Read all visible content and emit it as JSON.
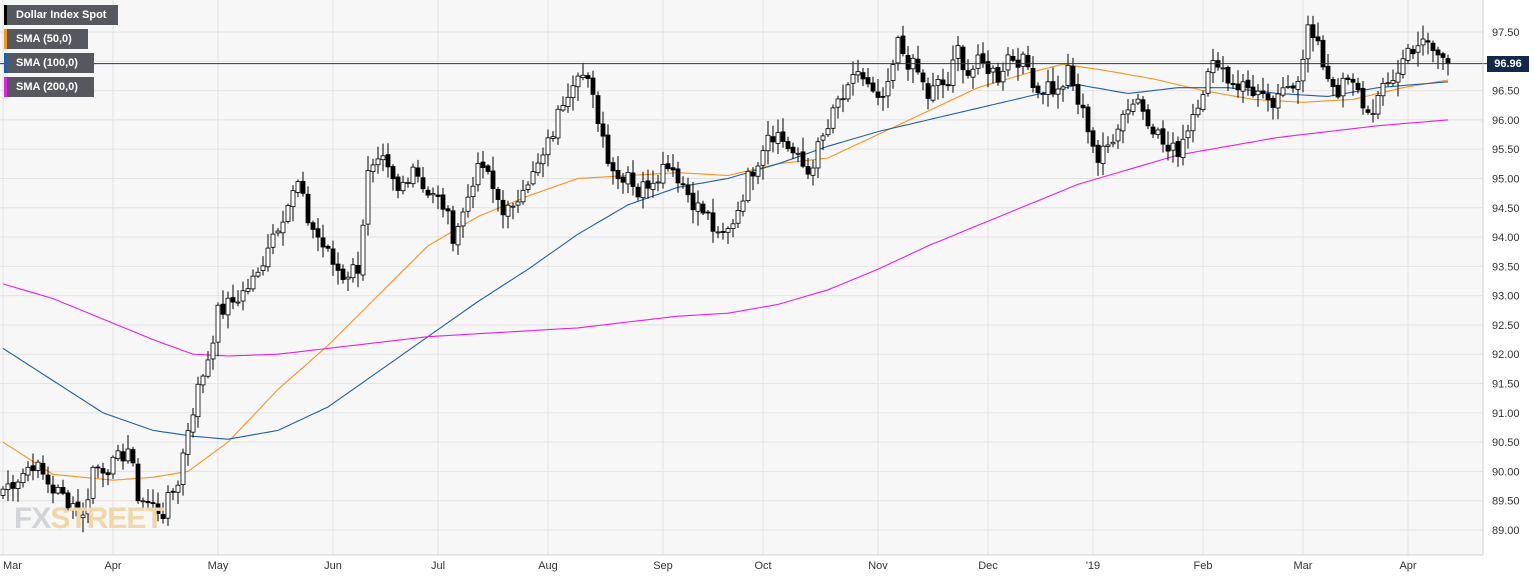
{
  "chart_data": {
    "type": "candlestick",
    "title": "",
    "instrument": "Dollar Index Spot",
    "last_price_label": "96.96",
    "last_price": 96.96,
    "y_axis": {
      "ticks": [
        "89.00",
        "89.50",
        "90.00",
        "90.50",
        "91.00",
        "91.50",
        "92.00",
        "92.50",
        "93.00",
        "93.50",
        "94.00",
        "94.50",
        "95.00",
        "95.50",
        "96.00",
        "96.50",
        "97.00",
        "97.50"
      ],
      "range": [
        88.7,
        97.95
      ]
    },
    "x_axis": {
      "labels": [
        {
          "label": "Mar",
          "index": 0
        },
        {
          "label": "Apr",
          "index": 22
        },
        {
          "label": "May",
          "index": 43
        },
        {
          "label": "Jun",
          "index": 66
        },
        {
          "label": "Jul",
          "index": 87
        },
        {
          "label": "Aug",
          "index": 109
        },
        {
          "label": "Sep",
          "index": 132
        },
        {
          "label": "Oct",
          "index": 152
        },
        {
          "label": "Nov",
          "index": 175
        },
        {
          "label": "Dec",
          "index": 197
        },
        {
          "label": "'19",
          "index": 218
        },
        {
          "label": "Feb",
          "index": 240
        },
        {
          "label": "Mar",
          "index": 260
        },
        {
          "label": "Apr",
          "index": 281
        }
      ],
      "total_bars": 290
    },
    "close_anchors": [
      [
        0,
        89.7
      ],
      [
        3,
        89.9
      ],
      [
        6,
        90.15
      ],
      [
        10,
        89.7
      ],
      [
        14,
        89.45
      ],
      [
        16,
        89.2
      ],
      [
        18,
        90.05
      ],
      [
        22,
        90.1
      ],
      [
        25,
        90.4
      ],
      [
        27,
        89.6
      ],
      [
        29,
        89.45
      ],
      [
        32,
        89.3
      ],
      [
        35,
        89.85
      ],
      [
        37,
        90.75
      ],
      [
        39,
        91.4
      ],
      [
        41,
        91.95
      ],
      [
        43,
        92.7
      ],
      [
        46,
        92.9
      ],
      [
        48,
        93.05
      ],
      [
        51,
        93.35
      ],
      [
        53,
        93.9
      ],
      [
        56,
        94.4
      ],
      [
        59,
        94.9
      ],
      [
        61,
        94.3
      ],
      [
        63,
        94.0
      ],
      [
        66,
        93.55
      ],
      [
        68,
        93.35
      ],
      [
        71,
        93.5
      ],
      [
        73,
        95.05
      ],
      [
        76,
        95.25
      ],
      [
        79,
        94.75
      ],
      [
        82,
        95.25
      ],
      [
        85,
        94.75
      ],
      [
        88,
        94.55
      ],
      [
        90,
        94.05
      ],
      [
        92,
        94.4
      ],
      [
        94,
        95.0
      ],
      [
        96,
        95.2
      ],
      [
        98,
        94.8
      ],
      [
        100,
        94.5
      ],
      [
        102,
        94.4
      ],
      [
        104,
        94.95
      ],
      [
        106,
        95.05
      ],
      [
        108,
        95.35
      ],
      [
        110,
        95.8
      ],
      [
        112,
        96.35
      ],
      [
        115,
        96.9
      ],
      [
        117,
        96.6
      ],
      [
        119,
        96.05
      ],
      [
        121,
        95.4
      ],
      [
        123,
        95.0
      ],
      [
        125,
        95.15
      ],
      [
        127,
        94.75
      ],
      [
        129,
        94.95
      ],
      [
        131,
        95.1
      ],
      [
        133,
        95.3
      ],
      [
        135,
        95.05
      ],
      [
        137,
        94.75
      ],
      [
        139,
        94.5
      ],
      [
        141,
        94.35
      ],
      [
        143,
        93.95
      ],
      [
        145,
        94.1
      ],
      [
        147,
        94.5
      ],
      [
        149,
        95.0
      ],
      [
        151,
        95.35
      ],
      [
        153,
        95.8
      ],
      [
        155,
        95.75
      ],
      [
        157,
        95.55
      ],
      [
        159,
        95.3
      ],
      [
        161,
        95.1
      ],
      [
        163,
        95.5
      ],
      [
        165,
        95.85
      ],
      [
        167,
        96.3
      ],
      [
        169,
        96.45
      ],
      [
        171,
        96.85
      ],
      [
        173,
        96.55
      ],
      [
        175,
        96.25
      ],
      [
        177,
        96.5
      ],
      [
        179,
        97.3
      ],
      [
        181,
        97.0
      ],
      [
        183,
        96.8
      ],
      [
        185,
        96.4
      ],
      [
        187,
        96.6
      ],
      [
        189,
        96.6
      ],
      [
        191,
        97.2
      ],
      [
        193,
        96.8
      ],
      [
        195,
        96.95
      ],
      [
        197,
        96.9
      ],
      [
        199,
        96.75
      ],
      [
        201,
        97.1
      ],
      [
        203,
        97.05
      ],
      [
        205,
        96.9
      ],
      [
        207,
        96.5
      ],
      [
        209,
        96.6
      ],
      [
        211,
        96.45
      ],
      [
        213,
        96.8
      ],
      [
        215,
        96.3
      ],
      [
        217,
        95.9
      ],
      [
        219,
        95.3
      ],
      [
        221,
        95.55
      ],
      [
        223,
        95.95
      ],
      [
        225,
        96.25
      ],
      [
        227,
        96.35
      ],
      [
        229,
        96.05
      ],
      [
        231,
        95.75
      ],
      [
        233,
        95.45
      ],
      [
        235,
        95.5
      ],
      [
        237,
        95.9
      ],
      [
        239,
        96.35
      ],
      [
        241,
        96.75
      ],
      [
        243,
        97.05
      ],
      [
        245,
        96.7
      ],
      [
        247,
        96.6
      ],
      [
        249,
        96.55
      ],
      [
        251,
        96.45
      ],
      [
        253,
        96.2
      ],
      [
        255,
        96.3
      ],
      [
        257,
        96.6
      ],
      [
        259,
        96.75
      ],
      [
        261,
        97.55
      ],
      [
        263,
        97.2
      ],
      [
        265,
        96.75
      ],
      [
        267,
        96.5
      ],
      [
        269,
        96.65
      ],
      [
        271,
        96.45
      ],
      [
        273,
        96.1
      ],
      [
        275,
        96.35
      ],
      [
        277,
        96.6
      ],
      [
        279,
        96.85
      ],
      [
        281,
        97.2
      ],
      [
        283,
        97.3
      ],
      [
        285,
        97.25
      ],
      [
        287,
        97.1
      ],
      [
        289,
        96.96
      ]
    ],
    "sma_curves": [
      {
        "name": "SMA (50,0)",
        "color": "#f7931e",
        "points": [
          [
            0,
            90.5
          ],
          [
            10,
            89.95
          ],
          [
            22,
            89.85
          ],
          [
            30,
            89.9
          ],
          [
            37,
            90.0
          ],
          [
            45,
            90.5
          ],
          [
            55,
            91.4
          ],
          [
            65,
            92.15
          ],
          [
            75,
            93.0
          ],
          [
            85,
            93.85
          ],
          [
            95,
            94.35
          ],
          [
            105,
            94.7
          ],
          [
            115,
            95.0
          ],
          [
            125,
            95.05
          ],
          [
            135,
            95.1
          ],
          [
            145,
            95.05
          ],
          [
            155,
            95.25
          ],
          [
            165,
            95.35
          ],
          [
            175,
            95.75
          ],
          [
            185,
            96.15
          ],
          [
            195,
            96.55
          ],
          [
            205,
            96.8
          ],
          [
            212,
            96.95
          ],
          [
            220,
            96.85
          ],
          [
            230,
            96.7
          ],
          [
            240,
            96.5
          ],
          [
            250,
            96.35
          ],
          [
            260,
            96.3
          ],
          [
            270,
            96.35
          ],
          [
            280,
            96.55
          ],
          [
            289,
            96.68
          ]
        ]
      },
      {
        "name": "SMA (100,0)",
        "color": "#1f5fa8",
        "points": [
          [
            0,
            92.1
          ],
          [
            10,
            91.55
          ],
          [
            20,
            91.0
          ],
          [
            30,
            90.7
          ],
          [
            38,
            90.6
          ],
          [
            45,
            90.55
          ],
          [
            55,
            90.7
          ],
          [
            65,
            91.1
          ],
          [
            75,
            91.7
          ],
          [
            85,
            92.3
          ],
          [
            95,
            92.9
          ],
          [
            105,
            93.45
          ],
          [
            115,
            94.05
          ],
          [
            125,
            94.55
          ],
          [
            135,
            94.85
          ],
          [
            145,
            95.0
          ],
          [
            155,
            95.25
          ],
          [
            165,
            95.55
          ],
          [
            175,
            95.8
          ],
          [
            185,
            96.0
          ],
          [
            195,
            96.2
          ],
          [
            205,
            96.4
          ],
          [
            215,
            96.6
          ],
          [
            225,
            96.45
          ],
          [
            235,
            96.55
          ],
          [
            245,
            96.55
          ],
          [
            255,
            96.45
          ],
          [
            265,
            96.4
          ],
          [
            275,
            96.55
          ],
          [
            289,
            96.65
          ]
        ]
      },
      {
        "name": "SMA (200,0)",
        "color": "#e81ee8",
        "points": [
          [
            0,
            93.2
          ],
          [
            10,
            92.95
          ],
          [
            20,
            92.6
          ],
          [
            30,
            92.25
          ],
          [
            38,
            92.0
          ],
          [
            45,
            91.97
          ],
          [
            55,
            92.0
          ],
          [
            65,
            92.1
          ],
          [
            75,
            92.2
          ],
          [
            85,
            92.3
          ],
          [
            95,
            92.35
          ],
          [
            105,
            92.4
          ],
          [
            115,
            92.45
          ],
          [
            125,
            92.55
          ],
          [
            135,
            92.65
          ],
          [
            145,
            92.7
          ],
          [
            155,
            92.85
          ],
          [
            165,
            93.1
          ],
          [
            175,
            93.45
          ],
          [
            185,
            93.85
          ],
          [
            195,
            94.2
          ],
          [
            205,
            94.55
          ],
          [
            215,
            94.9
          ],
          [
            225,
            95.15
          ],
          [
            235,
            95.4
          ],
          [
            245,
            95.55
          ],
          [
            255,
            95.7
          ],
          [
            265,
            95.8
          ],
          [
            275,
            95.9
          ],
          [
            289,
            96.0
          ]
        ]
      }
    ],
    "legend": {
      "position": "top-left",
      "items": [
        {
          "label": "Dollar Index Spot",
          "color": "#000000"
        },
        {
          "label": "SMA (50,0)",
          "color": "#f7931e"
        },
        {
          "label": "SMA (100,0)",
          "color": "#1f5fa8"
        },
        {
          "label": "SMA (200,0)",
          "color": "#e81ee8"
        }
      ]
    },
    "grid": true,
    "horizontal_price_line": 96.96
  },
  "watermark": {
    "part1": "FX",
    "part2": "STREET"
  }
}
